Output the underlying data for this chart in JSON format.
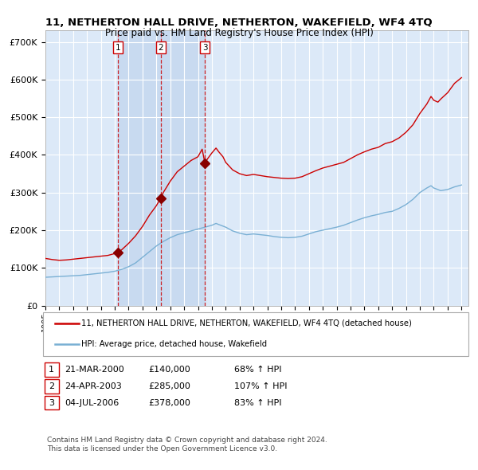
{
  "title": "11, NETHERTON HALL DRIVE, NETHERTON, WAKEFIELD, WF4 4TQ",
  "subtitle": "Price paid vs. HM Land Registry's House Price Index (HPI)",
  "xlim": [
    1995.0,
    2025.5
  ],
  "ylim": [
    0,
    730000
  ],
  "yticks": [
    0,
    100000,
    200000,
    300000,
    400000,
    500000,
    600000,
    700000
  ],
  "ytick_labels": [
    "£0",
    "£100K",
    "£200K",
    "£300K",
    "£400K",
    "£500K",
    "£600K",
    "£700K"
  ],
  "xticks": [
    1995,
    1996,
    1997,
    1998,
    1999,
    2000,
    2001,
    2002,
    2003,
    2004,
    2005,
    2006,
    2007,
    2008,
    2009,
    2010,
    2011,
    2012,
    2013,
    2014,
    2015,
    2016,
    2017,
    2018,
    2019,
    2020,
    2021,
    2022,
    2023,
    2024,
    2025
  ],
  "background_color": "#dce9f8",
  "grid_color": "#ffffff",
  "red_line_color": "#cc0000",
  "blue_line_color": "#7ab0d4",
  "sale_color": "#880000",
  "vline_color": "#cc0000",
  "span_color": "#c8daf0",
  "transactions": [
    {
      "num": 1,
      "date_dec": 2000.22,
      "price": 140000,
      "label": "21-MAR-2000",
      "price_str": "£140,000",
      "hpi_pct": "68% ↑ HPI"
    },
    {
      "num": 2,
      "date_dec": 2003.31,
      "price": 285000,
      "label": "24-APR-2003",
      "price_str": "£285,000",
      "hpi_pct": "107% ↑ HPI"
    },
    {
      "num": 3,
      "date_dec": 2006.5,
      "price": 378000,
      "label": "04-JUL-2006",
      "price_str": "£378,000",
      "hpi_pct": "83% ↑ HPI"
    }
  ],
  "legend_line1": "11, NETHERTON HALL DRIVE, NETHERTON, WAKEFIELD, WF4 4TQ (detached house)",
  "legend_line2": "HPI: Average price, detached house, Wakefield",
  "footnote1": "Contains HM Land Registry data © Crown copyright and database right 2024.",
  "footnote2": "This data is licensed under the Open Government Licence v3.0.",
  "red_line_x": [
    1995.0,
    1995.5,
    1996.0,
    1996.5,
    1997.0,
    1997.5,
    1998.0,
    1998.5,
    1999.0,
    1999.5,
    2000.22,
    2000.5,
    2001.0,
    2001.5,
    2002.0,
    2002.5,
    2003.0,
    2003.31,
    2003.5,
    2004.0,
    2004.5,
    2005.0,
    2005.5,
    2006.0,
    2006.3,
    2006.5,
    2006.7,
    2007.0,
    2007.3,
    2007.5,
    2007.8,
    2008.0,
    2008.5,
    2009.0,
    2009.5,
    2010.0,
    2010.5,
    2011.0,
    2011.5,
    2012.0,
    2012.5,
    2013.0,
    2013.5,
    2014.0,
    2014.5,
    2015.0,
    2015.5,
    2016.0,
    2016.5,
    2017.0,
    2017.5,
    2018.0,
    2018.5,
    2019.0,
    2019.5,
    2020.0,
    2020.5,
    2021.0,
    2021.5,
    2022.0,
    2022.5,
    2022.8,
    2023.0,
    2023.3,
    2023.5,
    2024.0,
    2024.5,
    2025.0
  ],
  "red_line_y": [
    125000,
    122000,
    120000,
    121000,
    123000,
    125000,
    127000,
    129000,
    131000,
    133000,
    140000,
    148000,
    165000,
    185000,
    210000,
    240000,
    265000,
    285000,
    300000,
    330000,
    355000,
    370000,
    385000,
    395000,
    415000,
    378000,
    390000,
    405000,
    418000,
    408000,
    395000,
    380000,
    360000,
    350000,
    345000,
    348000,
    345000,
    342000,
    340000,
    338000,
    337000,
    338000,
    342000,
    350000,
    358000,
    365000,
    370000,
    375000,
    380000,
    390000,
    400000,
    408000,
    415000,
    420000,
    430000,
    435000,
    445000,
    460000,
    480000,
    510000,
    535000,
    555000,
    545000,
    540000,
    548000,
    565000,
    590000,
    605000
  ],
  "blue_line_x": [
    1995.0,
    1995.5,
    1996.0,
    1996.5,
    1997.0,
    1997.5,
    1998.0,
    1998.5,
    1999.0,
    1999.5,
    2000.0,
    2000.5,
    2001.0,
    2001.5,
    2002.0,
    2002.5,
    2003.0,
    2003.5,
    2004.0,
    2004.5,
    2005.0,
    2005.5,
    2006.0,
    2006.5,
    2007.0,
    2007.3,
    2007.5,
    2008.0,
    2008.5,
    2009.0,
    2009.5,
    2010.0,
    2010.5,
    2011.0,
    2011.5,
    2012.0,
    2012.5,
    2013.0,
    2013.5,
    2014.0,
    2014.5,
    2015.0,
    2015.5,
    2016.0,
    2016.5,
    2017.0,
    2017.5,
    2018.0,
    2018.5,
    2019.0,
    2019.5,
    2020.0,
    2020.5,
    2021.0,
    2021.5,
    2022.0,
    2022.5,
    2022.8,
    2023.0,
    2023.5,
    2024.0,
    2024.5,
    2025.0
  ],
  "blue_line_y": [
    75000,
    76000,
    77000,
    78000,
    79000,
    80000,
    82000,
    84000,
    86000,
    88000,
    91000,
    96000,
    103000,
    113000,
    128000,
    143000,
    158000,
    170000,
    180000,
    188000,
    193000,
    198000,
    203000,
    208000,
    213000,
    218000,
    215000,
    208000,
    198000,
    192000,
    188000,
    190000,
    188000,
    186000,
    183000,
    181000,
    180000,
    181000,
    184000,
    190000,
    196000,
    200000,
    204000,
    208000,
    213000,
    220000,
    227000,
    233000,
    238000,
    242000,
    247000,
    250000,
    258000,
    268000,
    282000,
    300000,
    312000,
    318000,
    312000,
    305000,
    308000,
    315000,
    320000
  ]
}
